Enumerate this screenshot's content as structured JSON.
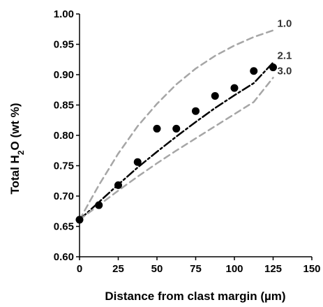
{
  "chart_data": {
    "type": "scatter",
    "xlabel": "Distance from clast margin (µm)",
    "ylabel_parts": {
      "pre": "Total H",
      "sub": "2",
      "post": "O (wt %)"
    },
    "xlim": [
      0,
      150
    ],
    "ylim": [
      0.6,
      1.0
    ],
    "xticks": [
      "0",
      "25",
      "50",
      "75",
      "100",
      "125",
      "150"
    ],
    "yticks": [
      "0.60",
      "0.65",
      "0.70",
      "0.75",
      "0.80",
      "0.85",
      "0.90",
      "0.95",
      "1.00"
    ],
    "grid": false,
    "points": {
      "x": [
        0,
        12.5,
        25,
        37.5,
        50,
        62.5,
        75,
        87.5,
        100,
        112.5,
        125
      ],
      "y": [
        0.661,
        0.685,
        0.718,
        0.756,
        0.811,
        0.811,
        0.84,
        0.865,
        0.878,
        0.906,
        0.912
      ],
      "color": "#000000"
    },
    "curves": [
      {
        "label": "1.0",
        "color": "#a6a6a6",
        "style": "dashed",
        "x": [
          0,
          12.5,
          25,
          37.5,
          50,
          62.5,
          75,
          87.5,
          100,
          112.5,
          125
        ],
        "y": [
          0.661,
          0.718,
          0.77,
          0.815,
          0.852,
          0.884,
          0.91,
          0.931,
          0.948,
          0.962,
          0.973
        ]
      },
      {
        "label": "2.1",
        "color": "#000000",
        "style": "dashdot",
        "x": [
          0,
          12.5,
          25,
          37.5,
          50,
          62.5,
          75,
          87.5,
          100,
          112.5,
          125
        ],
        "y": [
          0.661,
          0.69,
          0.719,
          0.747,
          0.773,
          0.798,
          0.822,
          0.845,
          0.866,
          0.886,
          0.92
        ]
      },
      {
        "label": "3.0",
        "color": "#a6a6a6",
        "style": "dashed",
        "x": [
          0,
          12.5,
          25,
          37.5,
          50,
          62.5,
          75,
          87.5,
          100,
          112.5,
          125
        ],
        "y": [
          0.661,
          0.685,
          0.709,
          0.732,
          0.754,
          0.775,
          0.795,
          0.815,
          0.835,
          0.855,
          0.895
        ]
      }
    ]
  }
}
